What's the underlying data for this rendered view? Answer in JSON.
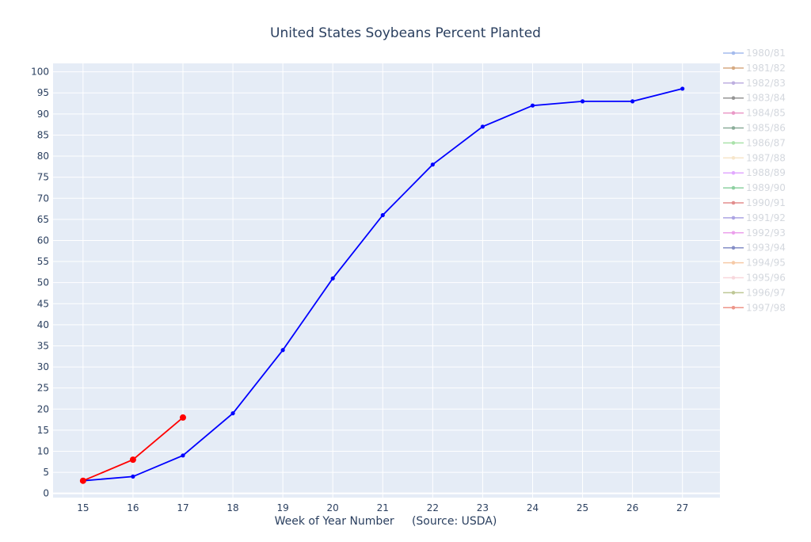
{
  "chart_data": {
    "type": "line",
    "title": "United States Soybeans Percent Planted",
    "xlabel": "Week of Year Number     (Source: USDA)",
    "ylabel": "",
    "x_ticks": [
      15,
      16,
      17,
      18,
      19,
      20,
      21,
      22,
      23,
      24,
      25,
      26,
      27
    ],
    "y_ticks": [
      0,
      5,
      10,
      15,
      20,
      25,
      30,
      35,
      40,
      45,
      50,
      55,
      60,
      65,
      70,
      75,
      80,
      85,
      90,
      95,
      100
    ],
    "xlim": [
      14.4,
      27.75
    ],
    "ylim": [
      -1,
      102
    ],
    "grid": true,
    "legend_position": "right",
    "highlighted_series": [
      {
        "color": "#0000ff",
        "x": [
          15,
          16,
          17,
          18,
          19,
          20,
          21,
          22,
          23,
          24,
          25,
          26,
          27
        ],
        "y": [
          3,
          4,
          9,
          19,
          34,
          51,
          66,
          78,
          87,
          92,
          93,
          93,
          96
        ]
      },
      {
        "color": "#ff0000",
        "x": [
          15,
          16,
          17
        ],
        "y": [
          3,
          8,
          18
        ]
      }
    ],
    "legend": [
      {
        "name": "1980/81",
        "color": "#5b84e0"
      },
      {
        "name": "1981/82",
        "color": "#b5651d"
      },
      {
        "name": "1982/83",
        "color": "#8a6fc8"
      },
      {
        "name": "1983/84",
        "color": "#404040"
      },
      {
        "name": "1984/85",
        "color": "#d9479a"
      },
      {
        "name": "1985/86",
        "color": "#2e6b46"
      },
      {
        "name": "1986/87",
        "color": "#66cc66"
      },
      {
        "name": "1987/88",
        "color": "#f2d3a0"
      },
      {
        "name": "1988/89",
        "color": "#cc66ff"
      },
      {
        "name": "1989/90",
        "color": "#33aa55"
      },
      {
        "name": "1990/91",
        "color": "#cc3333"
      },
      {
        "name": "1991/92",
        "color": "#6a5acd"
      },
      {
        "name": "1992/93",
        "color": "#dd55dd"
      },
      {
        "name": "1993/94",
        "color": "#223399"
      },
      {
        "name": "1994/95",
        "color": "#f0a060"
      },
      {
        "name": "1995/96",
        "color": "#f4b8c0"
      },
      {
        "name": "1996/97",
        "color": "#8a9a40"
      },
      {
        "name": "1997/98",
        "color": "#e0402a"
      }
    ]
  }
}
